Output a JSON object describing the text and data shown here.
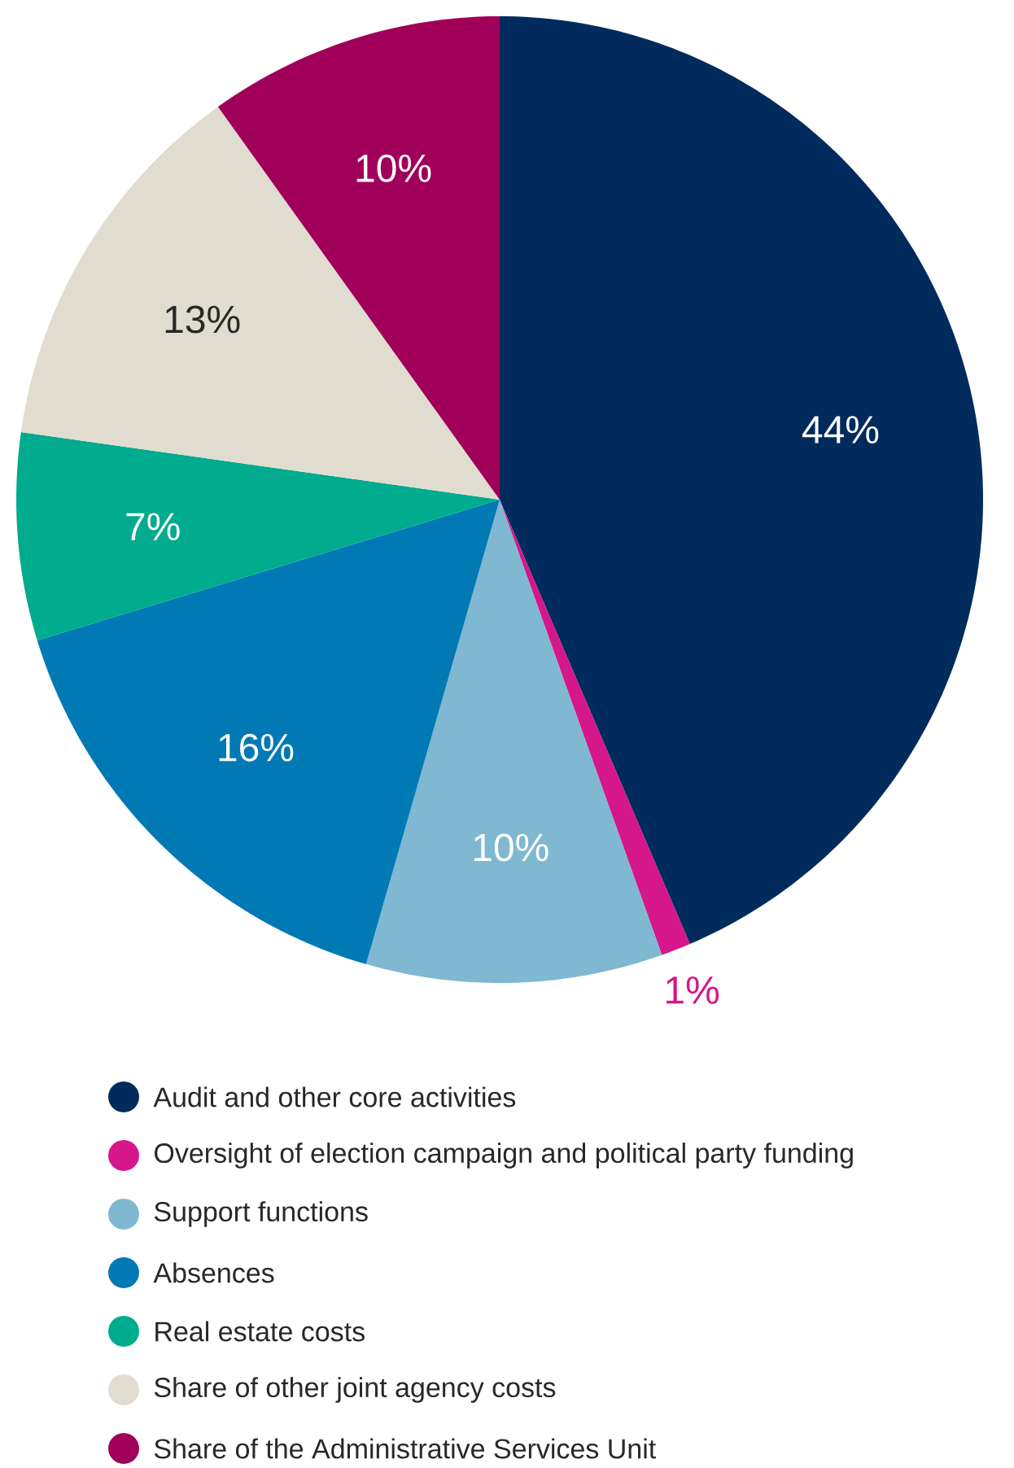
{
  "chart_data": {
    "type": "pie",
    "categories": [
      "Audit and other core activities",
      "Oversight of election campaign and political party funding",
      "Support functions",
      "Absences",
      "Real estate costs",
      "Share of other joint agency costs",
      "Share of the Administrative Services Unit"
    ],
    "values": [
      44,
      1,
      10,
      16,
      7,
      13,
      10
    ],
    "colors": [
      "#002b5c",
      "#d6168b",
      "#7fb8d0",
      "#0079b5",
      "#00ab8e",
      "#e0ddd0",
      "#a0005a"
    ],
    "value_labels": [
      "44%",
      "1%",
      "10%",
      "16%",
      "7%",
      "13%",
      "10%"
    ],
    "legend": "bottom"
  }
}
